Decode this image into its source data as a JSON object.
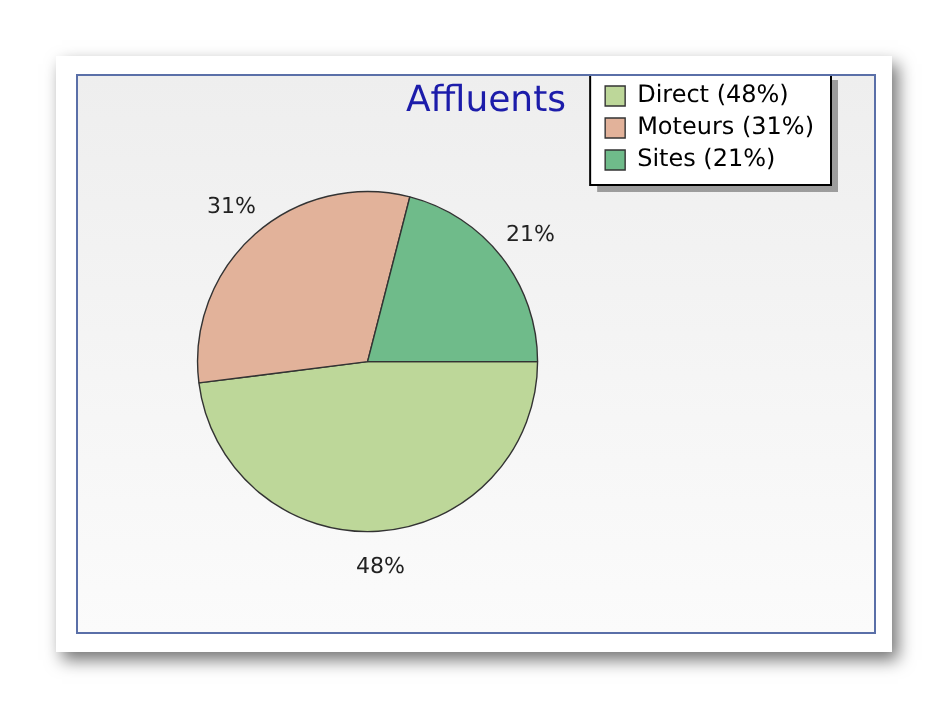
{
  "chart_data": {
    "type": "pie",
    "title": "Affluents",
    "categories": [
      "Direct (48%)",
      "Moteurs (31%)",
      "Sites (21%)"
    ],
    "values": [
      48,
      31,
      21
    ],
    "colors": [
      "#bdd799",
      "#e2b29a",
      "#6fbb8a"
    ],
    "value_labels": [
      "48%",
      "31%",
      "21%"
    ],
    "legend": "top right"
  }
}
